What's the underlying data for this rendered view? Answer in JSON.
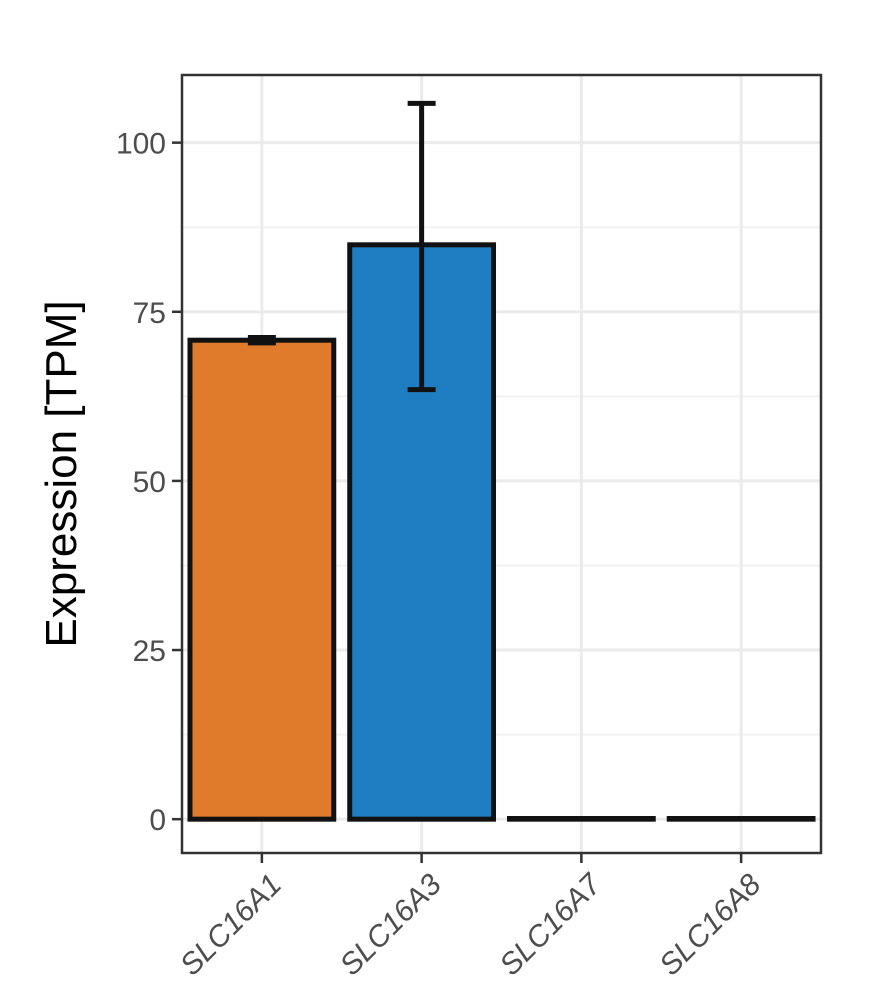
{
  "chart_data": {
    "type": "bar",
    "title": "",
    "xlabel": "",
    "ylabel": "Expression [TPM]",
    "categories": [
      "SLC16A1",
      "SLC16A3",
      "SLC16A7",
      "SLC16A8"
    ],
    "values": [
      70.8,
      84.9,
      0.1,
      0.1
    ],
    "error_low": [
      70.4,
      63.5,
      0.1,
      0.1
    ],
    "error_high": [
      71.2,
      105.8,
      0.1,
      0.1
    ],
    "ylim": [
      -5,
      110
    ],
    "yticks": [
      0,
      25,
      50,
      75,
      100
    ],
    "ytick_labels": [
      "0",
      "25",
      "50",
      "75",
      "100"
    ],
    "colors": [
      "#E07B2C",
      "#1F7EC1",
      "#1F1F1F",
      "#1F1F1F"
    ],
    "grid": true,
    "legend": "none"
  }
}
